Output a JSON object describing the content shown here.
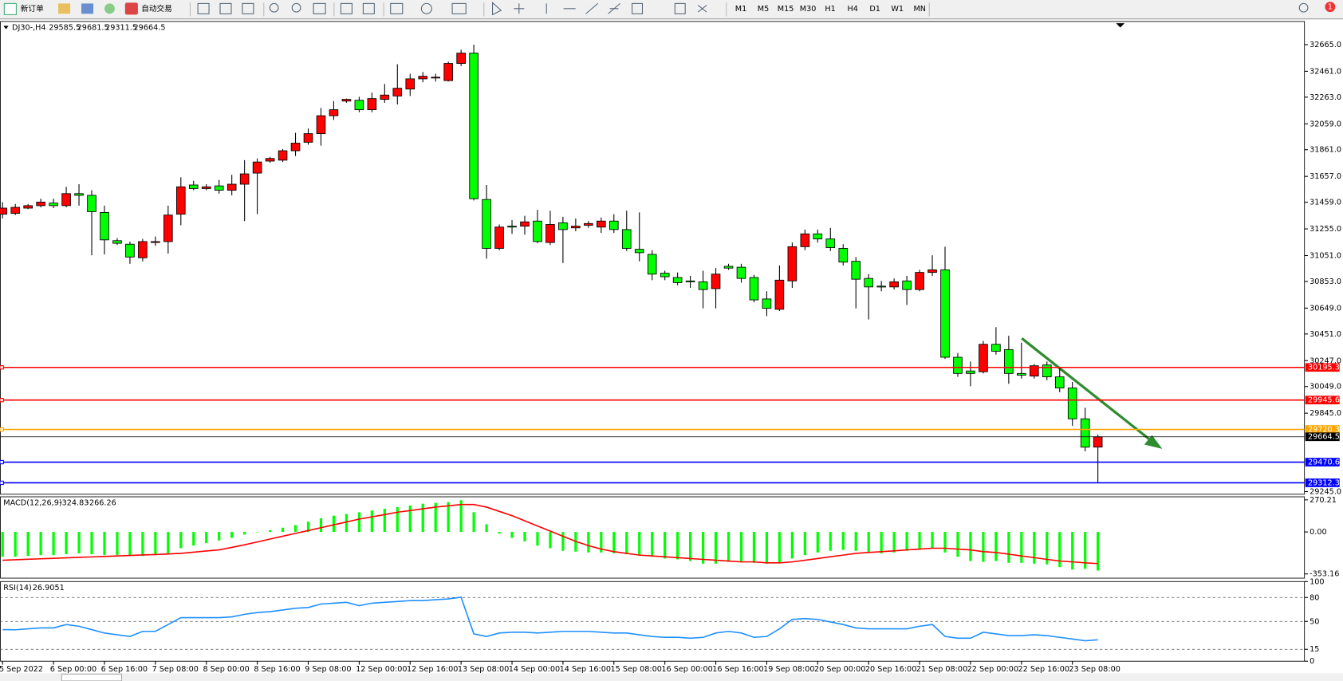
{
  "toolbar": {
    "buttons": [
      "新订单",
      "自动交易"
    ],
    "timeframes": [
      "M1",
      "M5",
      "M15",
      "M30",
      "H1",
      "H4",
      "D1",
      "W1",
      "MN"
    ],
    "notification": 1
  },
  "chart_data": [
    {
      "type": "candlestick",
      "symbol": "DJ30-,H4",
      "categories": [
        "5 Sep 2022",
        null,
        null,
        null,
        "6 Sep 00:00",
        null,
        null,
        null,
        "6 Sep 16:00",
        null,
        null,
        null,
        "7 Sep 08:00",
        null,
        null,
        null,
        "8 Sep 00:00",
        null,
        null,
        null,
        "8 Sep 16:00",
        null,
        null,
        null,
        "9 Sep 08:00",
        null,
        null,
        null,
        "12 Sep 00:00",
        null,
        null,
        null,
        "12 Sep 16:00",
        null,
        null,
        null,
        "13 Sep 08:00",
        null,
        null,
        null,
        "14 Sep 00:00",
        null,
        null,
        null,
        "14 Sep 16:00",
        null,
        null,
        null,
        "15 Sep 08:00",
        null,
        null,
        null,
        "16 Sep 00:00",
        null,
        null,
        null,
        "16 Sep 16:00",
        null,
        null,
        null,
        "19 Sep 08:00",
        null,
        null,
        null,
        "20 Sep 00:00",
        null,
        null,
        null,
        "20 Sep 16:00",
        null,
        null,
        null,
        "21 Sep 08:00",
        null,
        null,
        null,
        "22 Sep 00:00",
        null,
        null,
        null,
        "22 Sep 16:00",
        null,
        null,
        null,
        "23 Sep 08:00",
        null,
        null
      ],
      "candles": [
        [
          31368,
          31460,
          31335,
          31414
        ],
        [
          31374,
          31446,
          31361,
          31420
        ],
        [
          31414,
          31446,
          31407,
          31433
        ],
        [
          31433,
          31486,
          31420,
          31460
        ],
        [
          31453,
          31486,
          31414,
          31433
        ],
        [
          31433,
          31577,
          31420,
          31525
        ],
        [
          31525,
          31597,
          31433,
          31512
        ],
        [
          31512,
          31551,
          31053,
          31387
        ],
        [
          31381,
          31433,
          31060,
          31171
        ],
        [
          31165,
          31184,
          31132,
          31145
        ],
        [
          31138,
          31158,
          30988,
          31040
        ],
        [
          31034,
          31178,
          31007,
          31158
        ],
        [
          31151,
          31197,
          31125,
          31158
        ],
        [
          31158,
          31433,
          31066,
          31361
        ],
        [
          31368,
          31650,
          31283,
          31577
        ],
        [
          31591,
          31623,
          31551,
          31564
        ],
        [
          31564,
          31597,
          31551,
          31577
        ],
        [
          31584,
          31630,
          31525,
          31551
        ],
        [
          31551,
          31669,
          31512,
          31597
        ],
        [
          31597,
          31781,
          31315,
          31676
        ],
        [
          31682,
          31794,
          31368,
          31767
        ],
        [
          31774,
          31806,
          31761,
          31794
        ],
        [
          31781,
          31866,
          31767,
          31853
        ],
        [
          31853,
          31990,
          31813,
          31911
        ],
        [
          31918,
          32023,
          31899,
          31984
        ],
        [
          31984,
          32180,
          31892,
          32121
        ],
        [
          32121,
          32233,
          32089,
          32167
        ],
        [
          32233,
          32252,
          32220,
          32246
        ],
        [
          32239,
          32266,
          32148,
          32167
        ],
        [
          32167,
          32298,
          32148,
          32252
        ],
        [
          32246,
          32364,
          32220,
          32279
        ],
        [
          32272,
          32515,
          32207,
          32331
        ],
        [
          32325,
          32442,
          32272,
          32403
        ],
        [
          32403,
          32455,
          32377,
          32423
        ],
        [
          32410,
          32442,
          32383,
          32416
        ],
        [
          32390,
          32534,
          32383,
          32521
        ],
        [
          32521,
          32626,
          32501,
          32600
        ],
        [
          32600,
          32665,
          31473,
          31486
        ],
        [
          31480,
          31591,
          31027,
          31106
        ],
        [
          31106,
          31289,
          31092,
          31269
        ],
        [
          31276,
          31322,
          31217,
          31269
        ],
        [
          31276,
          31355,
          31211,
          31309
        ],
        [
          31315,
          31401,
          31145,
          31158
        ],
        [
          31151,
          31394,
          31132,
          31289
        ],
        [
          31302,
          31348,
          30994,
          31250
        ],
        [
          31263,
          31335,
          31237,
          31276
        ],
        [
          31283,
          31315,
          31263,
          31296
        ],
        [
          31269,
          31342,
          31224,
          31315
        ],
        [
          31315,
          31368,
          31224,
          31250
        ],
        [
          31250,
          31394,
          31086,
          31106
        ],
        [
          31099,
          31381,
          31007,
          31073
        ],
        [
          31060,
          31092,
          30863,
          30909
        ],
        [
          30916,
          30935,
          30863,
          30889
        ],
        [
          30883,
          30922,
          30824,
          30844
        ],
        [
          30857,
          30896,
          30804,
          30850
        ],
        [
          30850,
          30935,
          30647,
          30791
        ],
        [
          30798,
          30955,
          30647,
          30909
        ],
        [
          30969,
          30988,
          30942,
          30955
        ],
        [
          30962,
          30988,
          30844,
          30876
        ],
        [
          30883,
          30903,
          30693,
          30712
        ],
        [
          30719,
          30778,
          30588,
          30647
        ],
        [
          30640,
          30975,
          30627,
          30863
        ],
        [
          30857,
          31151,
          30804,
          31119
        ],
        [
          31119,
          31250,
          31092,
          31217
        ],
        [
          31217,
          31250,
          31151,
          31178
        ],
        [
          31178,
          31263,
          31086,
          31112
        ],
        [
          31106,
          31138,
          30975,
          31001
        ],
        [
          31007,
          31040,
          30647,
          30870
        ],
        [
          30876,
          30909,
          30562,
          30811
        ],
        [
          30817,
          30857,
          30778,
          30811
        ],
        [
          30811,
          30876,
          30791,
          30850
        ],
        [
          30857,
          30896,
          30673,
          30791
        ],
        [
          30791,
          30942,
          30778,
          30922
        ],
        [
          30922,
          31053,
          30896,
          30942
        ],
        [
          30942,
          31119,
          30260,
          30273
        ],
        [
          30273,
          30306,
          30123,
          30149
        ],
        [
          30168,
          30241,
          30051,
          30149
        ],
        [
          30162,
          30398,
          30149,
          30372
        ],
        [
          30372,
          30503,
          30293,
          30319
        ],
        [
          30332,
          30437,
          30070,
          30149
        ],
        [
          30149,
          30385,
          30110,
          30136
        ],
        [
          30129,
          30221,
          30110,
          30208
        ],
        [
          30214,
          30241,
          30097,
          30123
        ],
        [
          30123,
          30188,
          30005,
          30038
        ],
        [
          30038,
          30084,
          29749,
          29802
        ],
        [
          29802,
          29887,
          29553,
          29585
        ],
        [
          29585.5,
          29681.5,
          29311.5,
          29664.5
        ]
      ],
      "up_color": "#ff0000",
      "down_color": "#00ff00",
      "ylim": [
        29225,
        32842
      ],
      "yticks": [
        {
          "value": 32665,
          "label": "32665.0"
        },
        {
          "value": 32461,
          "label": "32461.0"
        },
        {
          "value": 32263,
          "label": "32263.0"
        },
        {
          "value": 32059,
          "label": "32059.0"
        },
        {
          "value": 31861,
          "label": "31861.0"
        },
        {
          "value": 31657,
          "label": "31657.0"
        },
        {
          "value": 31459,
          "label": "31459.0"
        },
        {
          "value": 31255,
          "label": "31255.0"
        },
        {
          "value": 31051,
          "label": "31051.0"
        },
        {
          "value": 30853,
          "label": "30853.0"
        },
        {
          "value": 30649,
          "label": "30649.0"
        },
        {
          "value": 30451,
          "label": "30451.0"
        },
        {
          "value": 30247,
          "label": "30247.0"
        },
        {
          "value": 30049,
          "label": "30049.0"
        },
        {
          "value": 29845,
          "label": "29845.0"
        },
        {
          "value": 29245,
          "label": "29245.0"
        }
      ],
      "levels": [
        {
          "value": 30195.3,
          "color": "#ff0000"
        },
        {
          "value": 29945.6,
          "color": "#ff0000"
        },
        {
          "value": 29720.3,
          "color": "#ffa500"
        },
        {
          "value": 29470.6,
          "color": "#0000ff"
        },
        {
          "value": 29312.3,
          "color": "#0000ff"
        }
      ],
      "bid": 29664.5
    },
    {
      "type": "macd",
      "name": "MACD(12,26,9)",
      "histogram": [
        -209,
        -209,
        -202,
        -195,
        -195,
        -187,
        -180,
        -187,
        -195,
        -195,
        -202,
        -202,
        -195,
        -180,
        -137,
        -115,
        -94,
        -72,
        -50,
        -22,
        0,
        14,
        36,
        58,
        87,
        115,
        137,
        151,
        166,
        180,
        195,
        209,
        223,
        238,
        245,
        252,
        267,
        166,
        65,
        -14,
        -50,
        -79,
        -115,
        -137,
        -159,
        -166,
        -173,
        -173,
        -180,
        -187,
        -195,
        -209,
        -224,
        -231,
        -245,
        -267,
        -267,
        -252,
        -252,
        -260,
        -267,
        -260,
        -224,
        -195,
        -173,
        -159,
        -151,
        -159,
        -173,
        -180,
        -173,
        -159,
        -151,
        -137,
        -173,
        -209,
        -245,
        -252,
        -245,
        -260,
        -260,
        -267,
        -274,
        -296,
        -317,
        -310,
        -324.83
      ],
      "signal": [
        -238,
        -234,
        -230,
        -226,
        -222,
        -218,
        -214,
        -210,
        -206,
        -202,
        -198,
        -194,
        -190,
        -185,
        -180,
        -170,
        -160,
        -151,
        -130,
        -108,
        -84,
        -60,
        -36,
        -12,
        12,
        36,
        60,
        84,
        108,
        127,
        146,
        166,
        180,
        195,
        209,
        220,
        231,
        231,
        209,
        173,
        137,
        94,
        50,
        7,
        -36,
        -79,
        -115,
        -144,
        -166,
        -180,
        -195,
        -202,
        -209,
        -216,
        -224,
        -231,
        -238,
        -245,
        -252,
        -252,
        -260,
        -260,
        -252,
        -238,
        -224,
        -209,
        -195,
        -180,
        -173,
        -166,
        -159,
        -151,
        -144,
        -137,
        -137,
        -144,
        -151,
        -166,
        -173,
        -187,
        -202,
        -216,
        -231,
        -245,
        -252,
        -260,
        -266.26
      ],
      "hist_color": "#00ff00",
      "signal_color": "#ff0000",
      "ylim": [
        -389,
        296
      ],
      "yticks": [
        270.21,
        {
          "value": 0,
          "label": "0.00"
        },
        -353.16
      ]
    },
    {
      "type": "line",
      "name": "RSI(14)",
      "values": [
        39.7,
        39.5,
        40.7,
        41.8,
        41.8,
        46.1,
        43.9,
        39.7,
        35.4,
        33.2,
        31.1,
        37.5,
        37.5,
        46.1,
        54.7,
        54.7,
        54.7,
        54.7,
        55.7,
        58.9,
        61.1,
        62.2,
        64.3,
        66.5,
        67.5,
        71.8,
        72.9,
        74,
        69.7,
        72.9,
        74,
        75,
        76.1,
        76.1,
        77.2,
        78.2,
        80.4,
        34.3,
        31.1,
        35.4,
        36.4,
        36.4,
        35.4,
        36.4,
        37.5,
        37.5,
        37.5,
        36.4,
        35.4,
        35.4,
        33.2,
        31.1,
        30,
        30,
        28.9,
        30,
        35.4,
        37.5,
        35.4,
        30,
        31.1,
        40.7,
        52.5,
        53.6,
        52.5,
        49.3,
        46.1,
        41.8,
        40.7,
        40.7,
        40.7,
        40.7,
        43.9,
        46.1,
        31.1,
        28.9,
        28.9,
        36.4,
        34.3,
        32.2,
        32.2,
        33.2,
        32.2,
        30,
        27.9,
        25.7,
        26.9051
      ],
      "color": "#1e90ff",
      "ylim": [
        0,
        100
      ],
      "yticks": [
        100,
        80,
        50,
        15,
        0
      ],
      "levels": [
        80,
        50,
        15
      ]
    }
  ]
}
